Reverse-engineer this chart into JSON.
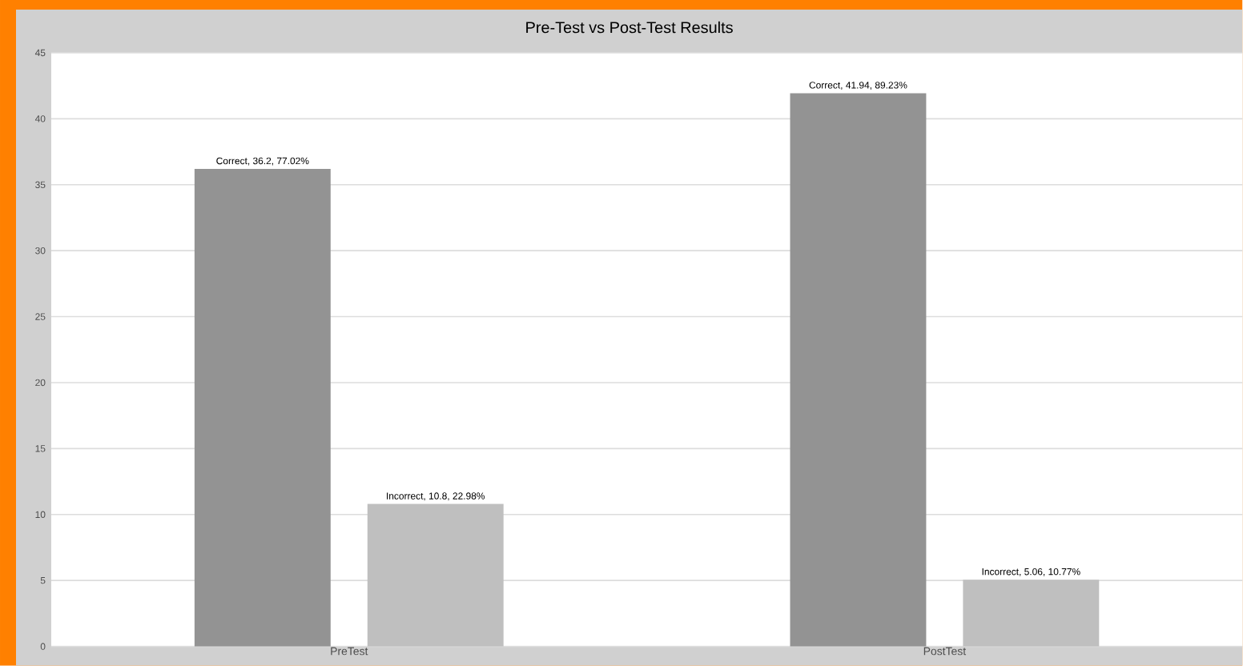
{
  "chart_data": {
    "type": "bar",
    "title": "Pre-Test vs Post-Test Results",
    "categories": [
      "PreTest",
      "PostTest"
    ],
    "series": [
      {
        "color": "#939393",
        "values": [
          36.2,
          41.94
        ],
        "value_labels": [
          "Correct, 36.2, 77.02%",
          "Correct, 41.94, 89.23%"
        ]
      },
      {
        "color": "#bfbfbf",
        "values": [
          10.8,
          5.06
        ],
        "value_labels": [
          "Incorrect, 10.8, 22.98%",
          "Incorrect, 5.06, 10.77%"
        ]
      }
    ],
    "ylim": [
      0,
      45
    ],
    "yticks": [
      0,
      5,
      10,
      15,
      20,
      25,
      30,
      35,
      40,
      45
    ],
    "grid": "y"
  }
}
